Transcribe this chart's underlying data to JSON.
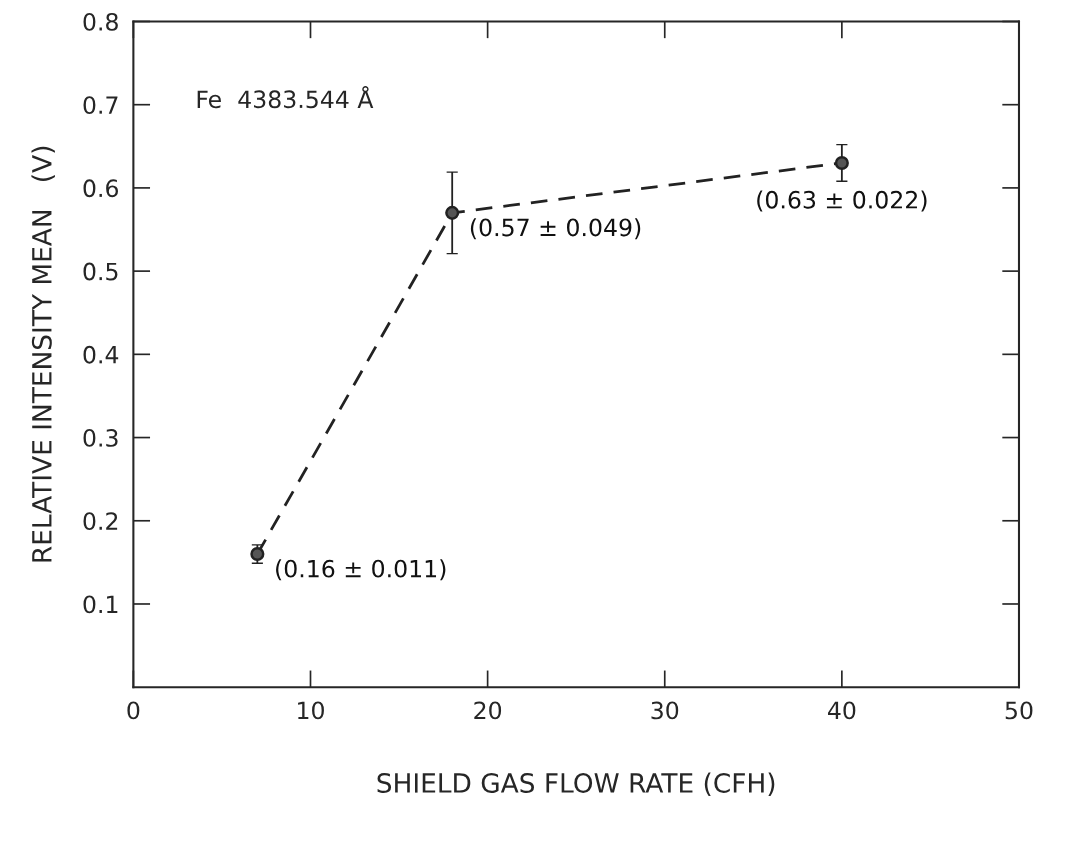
{
  "chart_data": {
    "type": "line",
    "xlabel": "SHIELD GAS FLOW RATE (CFH)",
    "ylabel": "RELATIVE INTENSITY MEAN   (V)",
    "x": [
      7,
      18,
      40
    ],
    "series": [
      {
        "color": "#222222",
        "values": [
          0.16,
          0.57,
          0.63
        ],
        "errors": [
          0.011,
          0.049,
          0.022
        ],
        "value_labels": [
          "(0.16 ± 0.011)",
          "(0.57 ± 0.049)",
          "(0.63 ± 0.022)"
        ]
      }
    ],
    "annotations": [
      "Fe  4383.544 Å"
    ],
    "xlim": [
      0,
      50
    ],
    "xticks": [
      0,
      10,
      20,
      30,
      40,
      50
    ],
    "ylim": [
      0,
      0.8
    ],
    "yticks": [
      0.1,
      0.2,
      0.3,
      0.4,
      0.5,
      0.6,
      0.7,
      0.8
    ],
    "marker": "circle",
    "line_style": "dashed",
    "grid": false,
    "legend": false
  }
}
